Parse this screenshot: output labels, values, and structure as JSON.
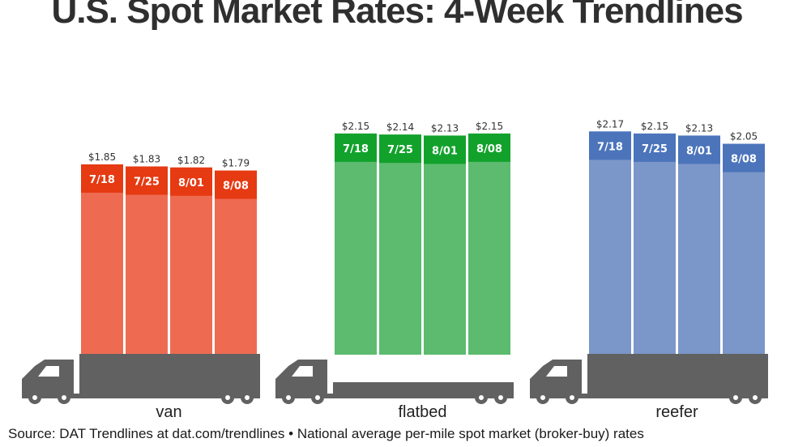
{
  "title": "U.S. Spot Market Rates: 4-Week Trendlines",
  "source_note": "Source: DAT Trendlines at dat.com/trendlines • National average per-mile spot market (broker-buy) rates",
  "chart_data": {
    "type": "bar",
    "title": "U.S. Spot Market Rates: 4-Week Trendlines",
    "categories": [
      "7/18",
      "7/25",
      "8/01",
      "8/08"
    ],
    "value_labels": {
      "van": [
        "$1.85",
        "$1.83",
        "$1.82",
        "$1.79"
      ],
      "flatbed": [
        "$2.15",
        "$2.14",
        "$2.13",
        "$2.15"
      ],
      "reefer": [
        "$2.17",
        "$2.15",
        "$2.13",
        "$2.05"
      ]
    },
    "series": [
      {
        "name": "van",
        "values": [
          1.85,
          1.83,
          1.82,
          1.79
        ],
        "color": "#ee6b52",
        "label_color": "#e63a12"
      },
      {
        "name": "flatbed",
        "values": [
          2.15,
          2.14,
          2.13,
          2.15
        ],
        "color": "#5cbb6e",
        "label_color": "#12a22c"
      },
      {
        "name": "reefer",
        "values": [
          2.17,
          2.15,
          2.13,
          2.05
        ],
        "color": "#7b96c8",
        "label_color": "#4b74bb"
      }
    ],
    "unit": "$ per mile",
    "truck_color": "#616161"
  }
}
